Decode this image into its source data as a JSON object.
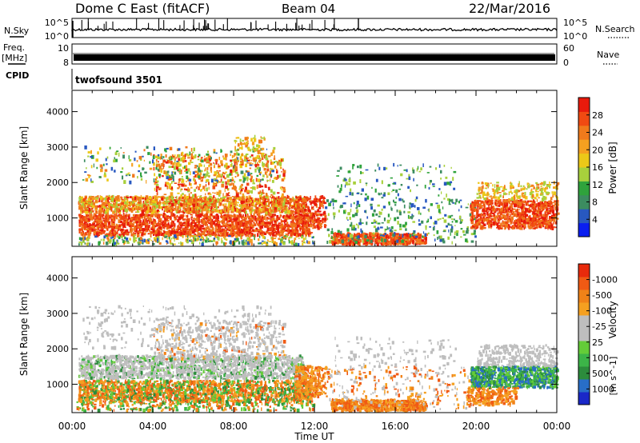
{
  "header": {
    "station": "Dome C East (fitACF)",
    "beam": "Beam 04",
    "date": "22/Mar/2016"
  },
  "strips": {
    "nsky": {
      "label": "N.Sky",
      "tick_top": "10^5",
      "tick_bottom": "10^0",
      "right_label": "N.Search",
      "right_tick_top": "10^5",
      "right_tick_bottom": "10^0"
    },
    "freq": {
      "label_line1": "Freq.",
      "label_line2": "[MHz]",
      "tick_top": "10",
      "tick_bottom": "8",
      "right_label": "Nave",
      "right_tick_top": "60",
      "right_tick_bottom": "0"
    },
    "cpid": {
      "label": "CPID",
      "program": "twofsound 3501"
    }
  },
  "chart_data": [
    {
      "type": "heatmap",
      "ylabel": "Slant Range [km]",
      "ylim": [
        200,
        4600
      ],
      "yticks": [
        1000,
        2000,
        3000,
        4000
      ],
      "xlim_hours": [
        0,
        24
      ],
      "colorbar": {
        "label": "Power [dB]",
        "ticks": [
          "4",
          "8",
          "12",
          "16",
          "20",
          "24",
          "28"
        ],
        "colors": [
          "#0a1ef0",
          "#2858c0",
          "#3c8c60",
          "#2fa33c",
          "#a8d03c",
          "#ecc818",
          "#f5a020",
          "#f07a1c",
          "#f04a12",
          "#e81a0c"
        ]
      },
      "dominant_echo_bands": [
        {
          "t_start": 0.3,
          "t_end": 11.8,
          "range_km": [
            500,
            1100
          ],
          "level_dB": 28
        },
        {
          "t_start": 0.3,
          "t_end": 11.5,
          "range_km": [
            1200,
            1600
          ],
          "level_dB": 18
        },
        {
          "t_start": 12.8,
          "t_end": 17.5,
          "range_km": [
            250,
            550
          ],
          "level_dB": 26
        },
        {
          "t_start": 19.7,
          "t_end": 24.0,
          "range_km": [
            700,
            1500
          ],
          "level_dB": 26
        }
      ]
    },
    {
      "type": "heatmap",
      "ylabel": "Slant Range [km]",
      "ylim": [
        200,
        4600
      ],
      "yticks": [
        1000,
        2000,
        3000,
        4000
      ],
      "xlim_hours": [
        0,
        24
      ],
      "colorbar": {
        "label": "Velocity",
        "label_unit": "[m s^-1]",
        "ticks": [
          "1000",
          "500",
          "100",
          "25",
          "-25",
          "-100",
          "-500",
          "-1000"
        ],
        "colors": [
          "#1a28c8",
          "#286ec8",
          "#2c8c3c",
          "#3cb448",
          "#64cc38",
          "#bebebe",
          "#bebebe",
          "#f5a020",
          "#f08218",
          "#f05a14",
          "#e82a0c"
        ]
      },
      "dominant_echo_bands": [
        {
          "t_start": 0.3,
          "t_end": 11.8,
          "range_km": [
            500,
            1100
          ],
          "velocity_ms": -100
        },
        {
          "t_start": 0.3,
          "t_end": 11.5,
          "range_km": [
            1200,
            1700
          ],
          "velocity_ms": 0
        },
        {
          "t_start": 12.8,
          "t_end": 17.5,
          "range_km": [
            250,
            550
          ],
          "velocity_ms": -150
        },
        {
          "t_start": 19.7,
          "t_end": 24.0,
          "range_km": [
            900,
            1500
          ],
          "velocity_ms": 200
        }
      ]
    }
  ],
  "xaxis": {
    "label": "Time UT",
    "ticks": [
      "00:00",
      "04:00",
      "08:00",
      "12:00",
      "16:00",
      "20:00",
      "00:00"
    ]
  }
}
